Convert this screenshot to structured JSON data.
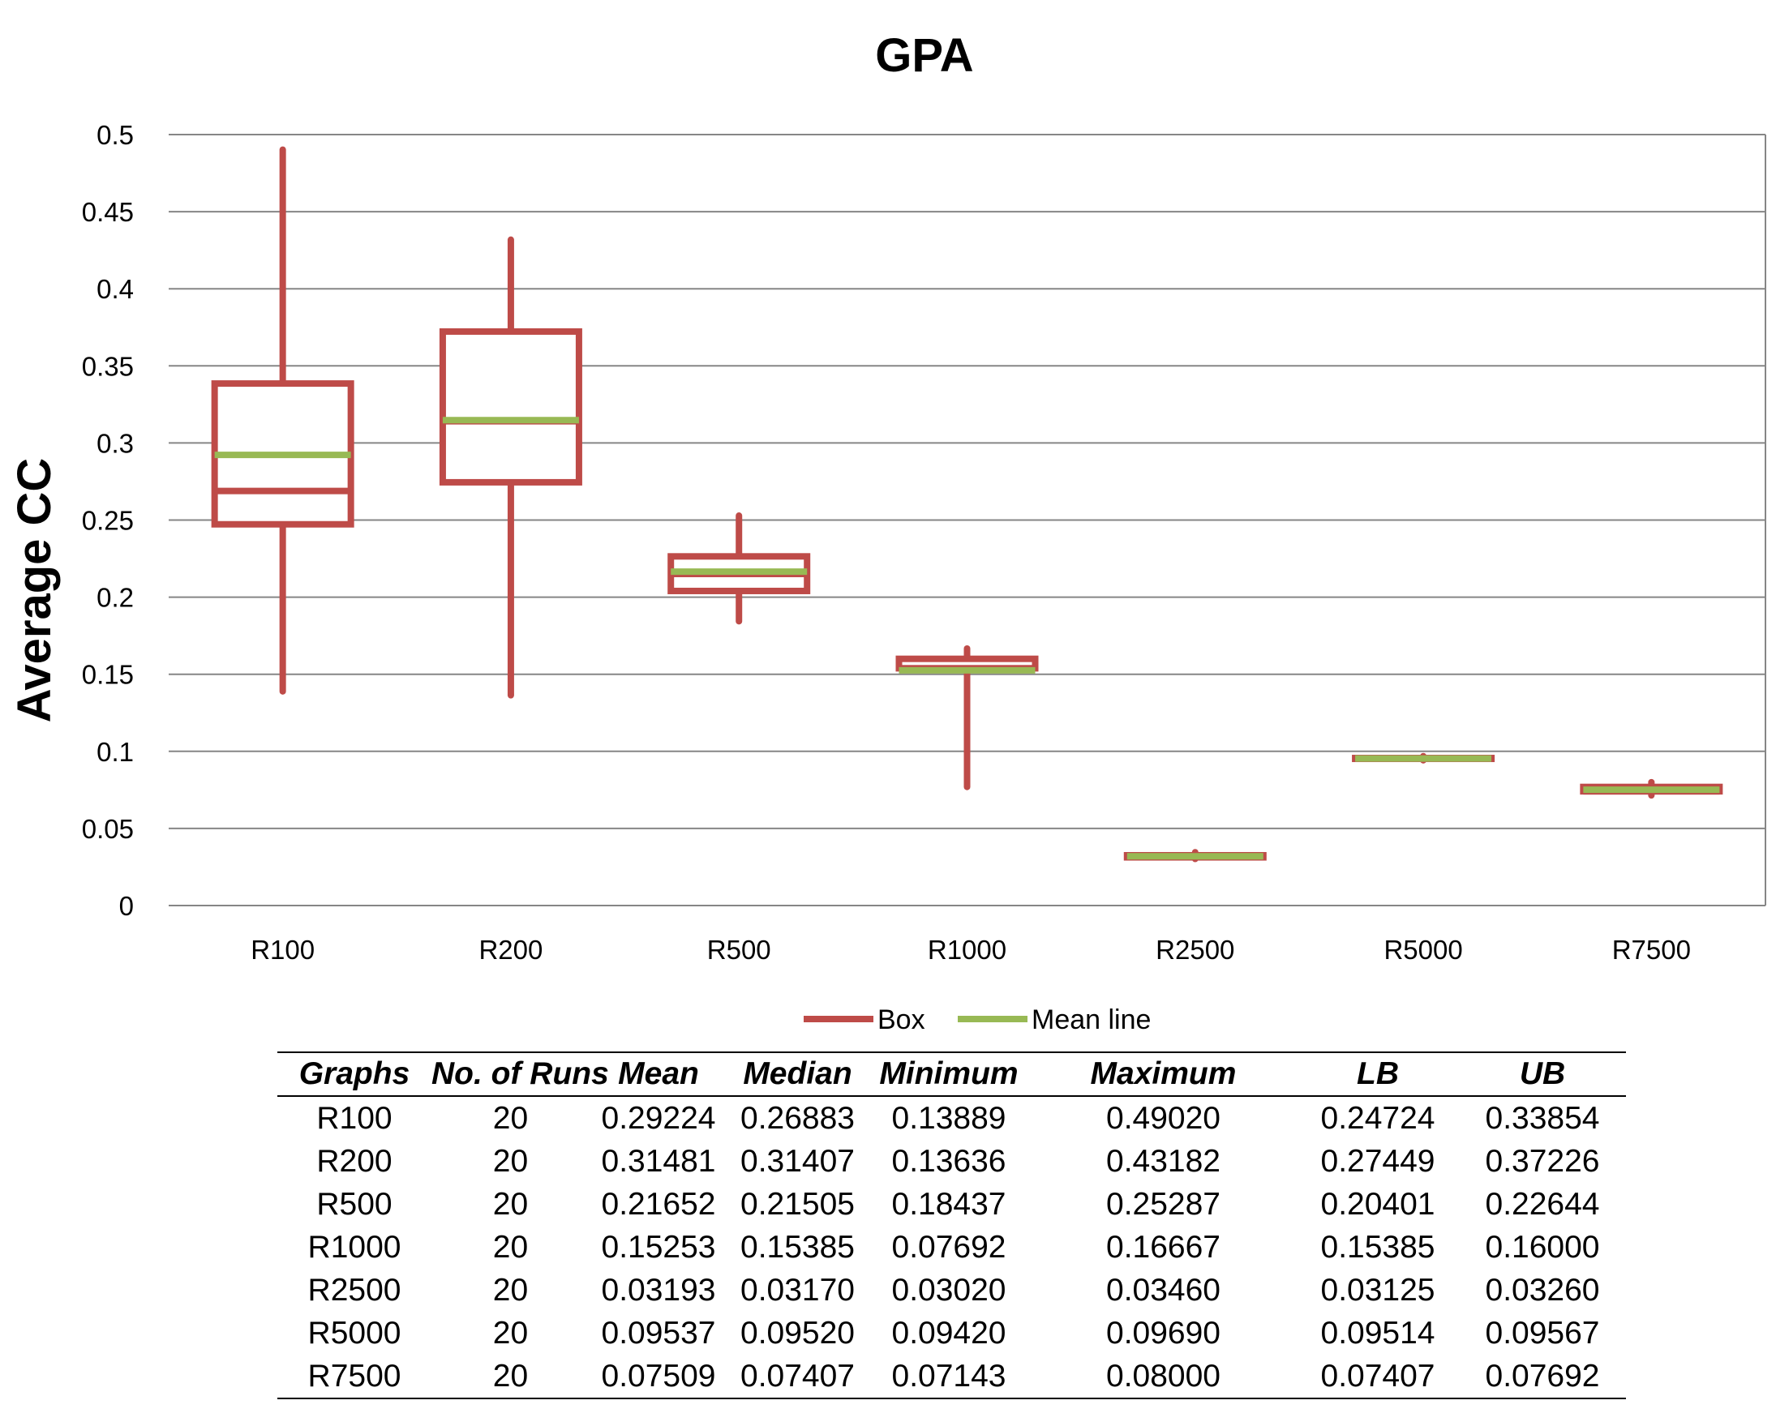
{
  "chart_data": {
    "type": "box",
    "title": "GPA",
    "xlabel": "",
    "ylabel": "Average CC",
    "ylim": [
      0,
      0.5
    ],
    "yticks": [
      "0",
      "0.05",
      "0.1",
      "0.15",
      "0.2",
      "0.25",
      "0.3",
      "0.35",
      "0.4",
      "0.45",
      "0.5"
    ],
    "grid": true,
    "legend_position": "bottom",
    "categories": [
      "R100",
      "R200",
      "R500",
      "R1000",
      "R2500",
      "R5000",
      "R7500"
    ],
    "series": [
      {
        "name": "Box",
        "color": "#be4b48"
      },
      {
        "name": "Mean line",
        "color": "#98b954"
      }
    ],
    "boxes": [
      {
        "graph": "R100",
        "mean": 0.29224,
        "median": 0.26883,
        "min": 0.13889,
        "max": 0.4902,
        "lb": 0.24724,
        "ub": 0.33854
      },
      {
        "graph": "R200",
        "mean": 0.31481,
        "median": 0.31407,
        "min": 0.13636,
        "max": 0.43182,
        "lb": 0.27449,
        "ub": 0.37226
      },
      {
        "graph": "R500",
        "mean": 0.21652,
        "median": 0.21505,
        "min": 0.18437,
        "max": 0.25287,
        "lb": 0.20401,
        "ub": 0.22644
      },
      {
        "graph": "R1000",
        "mean": 0.15253,
        "median": 0.15385,
        "min": 0.07692,
        "max": 0.16667,
        "lb": 0.15385,
        "ub": 0.16
      },
      {
        "graph": "R2500",
        "mean": 0.03193,
        "median": 0.0317,
        "min": 0.0302,
        "max": 0.0346,
        "lb": 0.03125,
        "ub": 0.0326
      },
      {
        "graph": "R5000",
        "mean": 0.09537,
        "median": 0.0952,
        "min": 0.0942,
        "max": 0.0969,
        "lb": 0.09514,
        "ub": 0.09567
      },
      {
        "graph": "R7500",
        "mean": 0.07509,
        "median": 0.07407,
        "min": 0.07143,
        "max": 0.08,
        "lb": 0.07407,
        "ub": 0.07692
      }
    ]
  },
  "table": {
    "headers": [
      "Graphs",
      "No. of Runs",
      "Mean",
      "Median",
      "Minimum",
      "Maximum",
      "LB",
      "UB"
    ],
    "rows": [
      [
        "R100",
        "20",
        "0.29224",
        "0.26883",
        "0.13889",
        "0.49020",
        "0.24724",
        "0.33854"
      ],
      [
        "R200",
        "20",
        "0.31481",
        "0.31407",
        "0.13636",
        "0.43182",
        "0.27449",
        "0.37226"
      ],
      [
        "R500",
        "20",
        "0.21652",
        "0.21505",
        "0.18437",
        "0.25287",
        "0.20401",
        "0.22644"
      ],
      [
        "R1000",
        "20",
        "0.15253",
        "0.15385",
        "0.07692",
        "0.16667",
        "0.15385",
        "0.16000"
      ],
      [
        "R2500",
        "20",
        "0.03193",
        "0.03170",
        "0.03020",
        "0.03460",
        "0.03125",
        "0.03260"
      ],
      [
        "R5000",
        "20",
        "0.09537",
        "0.09520",
        "0.09420",
        "0.09690",
        "0.09514",
        "0.09567"
      ],
      [
        "R7500",
        "20",
        "0.07509",
        "0.07407",
        "0.07143",
        "0.08000",
        "0.07407",
        "0.07692"
      ]
    ]
  }
}
